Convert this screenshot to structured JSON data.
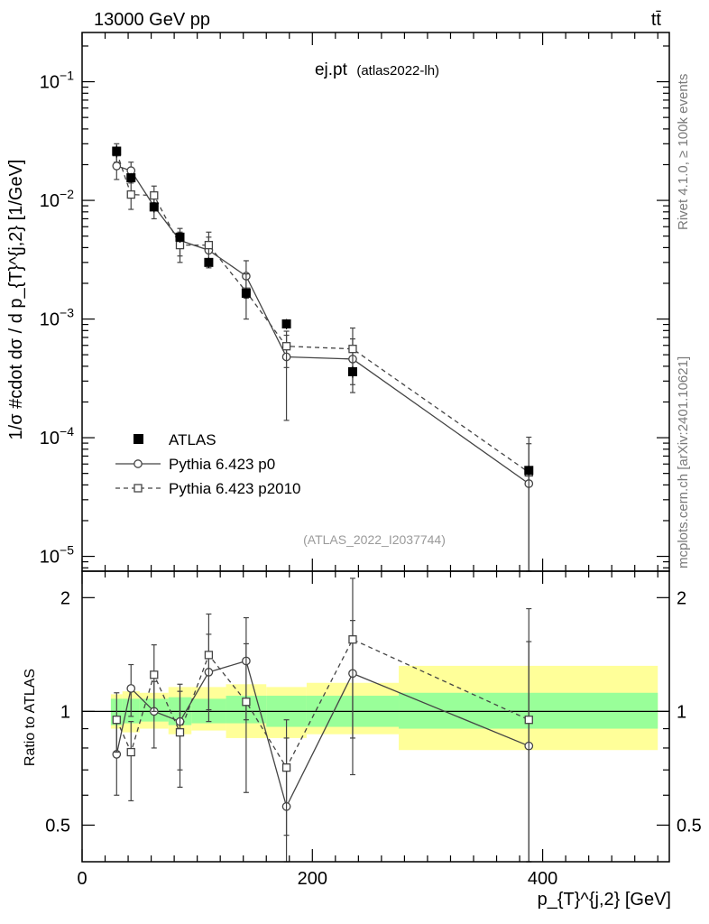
{
  "header": {
    "left": "13000 GeV pp",
    "right": "tt̄"
  },
  "side_labels": {
    "top": "Rivet 4.1.0, ≥ 100k events",
    "bottom": "mcplots.cern.ch [arXiv:2401.10621]"
  },
  "chart_data": [
    {
      "type": "scatter",
      "panel": "main",
      "title": "ej.pt",
      "subtitle": "(atlas2022-lh)",
      "watermark": "(ATLAS_2022_I2037744)",
      "ylabel": "1/σ #cdot dσ / d p_{T}^{j,2} [1/GeV]",
      "yscale": "log",
      "xlim": [
        0,
        510
      ],
      "ylim": [
        7.5e-06,
        0.26
      ],
      "y_ticks": [
        {
          "value": 1e-05,
          "base": "10",
          "exp": "−5"
        },
        {
          "value": 0.0001,
          "base": "10",
          "exp": "−4"
        },
        {
          "value": 0.001,
          "base": "10",
          "exp": "−3"
        },
        {
          "value": 0.01,
          "base": "10",
          "exp": "−2"
        },
        {
          "value": 0.1,
          "base": "10",
          "exp": "−1"
        }
      ],
      "legend_position": "lower-left",
      "series": [
        {
          "name": "ATLAS",
          "style": "filled-square",
          "x": [
            30,
            42.5,
            62.5,
            85,
            110,
            142.5,
            177.5,
            235,
            388
          ],
          "y": [
            0.026,
            0.0155,
            0.0088,
            0.0049,
            0.003,
            0.00165,
            0.00091,
            0.00036,
            5.3e-05
          ],
          "err": [
            0.003,
            0.0015,
            0.0009,
            0.0005,
            0.0003,
            0.00017,
            9e-05,
            4e-05,
            5e-06
          ]
        },
        {
          "name": "Pythia 6.423 p0",
          "style": "open-circle-solid",
          "x": [
            30,
            42.5,
            62.5,
            85,
            110,
            142.5,
            177.5,
            235,
            388
          ],
          "y": [
            0.0195,
            0.0178,
            0.0089,
            0.0046,
            0.0038,
            0.0023,
            0.00048,
            0.00046,
            4.1e-05
          ],
          "err_up": [
            0.0045,
            0.0032,
            0.0019,
            0.0012,
            0.0011,
            0.0008,
            0.00025,
            0.00022,
            4.8e-05
          ],
          "err_down": [
            0.0045,
            0.0032,
            0.0019,
            0.0012,
            0.0011,
            0.0008,
            0.00034,
            0.00022,
            4e-05
          ]
        },
        {
          "name": "Pythia 6.423 p2010",
          "style": "open-square-dashed",
          "x": [
            30,
            42.5,
            62.5,
            85,
            110,
            142.5,
            177.5,
            235,
            388
          ],
          "y": [
            0.0255,
            0.0112,
            0.011,
            0.0042,
            0.0042,
            0.0017,
            0.00059,
            0.00056,
            5.1e-05
          ],
          "err_up": [
            0.0045,
            0.0028,
            0.0022,
            0.0012,
            0.0012,
            0.0007,
            0.0002,
            0.00028,
            5e-05
          ],
          "err_down": [
            0.0045,
            0.0028,
            0.0022,
            0.0012,
            0.0012,
            0.0007,
            0.0002,
            0.00028,
            4.9e-05
          ]
        }
      ]
    },
    {
      "type": "line",
      "panel": "ratio",
      "ylabel": "Ratio to ATLAS",
      "xlabel": "p_{T}^{j,2} [GeV]",
      "yscale": "log",
      "xlim": [
        0,
        510
      ],
      "ylim": [
        0.4,
        2.35
      ],
      "x_ticks": [
        0,
        200,
        400
      ],
      "y_ticks": [
        0.5,
        1,
        2
      ],
      "reference_line": 1,
      "bands": {
        "edges": [
          25,
          35,
          50,
          75,
          95,
          125,
          160,
          195,
          275,
          500
        ],
        "green_low": [
          0.92,
          0.93,
          0.94,
          0.92,
          0.93,
          0.93,
          0.91,
          0.91,
          0.9
        ],
        "green_high": [
          1.08,
          1.08,
          1.08,
          1.09,
          1.08,
          1.1,
          1.1,
          1.1,
          1.12
        ],
        "yellow_low": [
          0.9,
          0.88,
          0.9,
          0.87,
          0.89,
          0.85,
          0.85,
          0.87,
          0.79
        ],
        "yellow_high": [
          1.11,
          1.13,
          1.12,
          1.16,
          1.16,
          1.18,
          1.16,
          1.19,
          1.32
        ]
      },
      "series": [
        {
          "name": "Pythia 6.423 p0",
          "style": "open-circle-solid",
          "x": [
            30,
            42.5,
            62.5,
            85,
            110,
            142.5,
            177.5,
            235,
            388
          ],
          "y": [
            0.77,
            1.15,
            1.0,
            0.94,
            1.27,
            1.36,
            0.56,
            1.26,
            0.81
          ],
          "err_up": [
            0.17,
            0.18,
            0.2,
            0.24,
            0.33,
            0.41,
            0.29,
            0.48,
            0.72
          ],
          "err_down": [
            0.17,
            0.18,
            0.2,
            0.24,
            0.33,
            0.41,
            0.25,
            0.58,
            0.45
          ]
        },
        {
          "name": "Pythia 6.423 p2010",
          "style": "open-square-dashed",
          "x": [
            30,
            42.5,
            62.5,
            85,
            110,
            142.5,
            177.5,
            235,
            388
          ],
          "y": [
            0.95,
            0.78,
            1.25,
            0.88,
            1.41,
            1.06,
            0.71,
            1.55,
            0.95
          ],
          "err_up": [
            0.17,
            0.16,
            0.25,
            0.25,
            0.4,
            0.45,
            0.24,
            0.7,
            0.92
          ],
          "err_down": [
            0.17,
            0.2,
            0.25,
            0.25,
            0.4,
            0.45,
            0.24,
            0.7,
            0.6
          ]
        }
      ]
    }
  ]
}
